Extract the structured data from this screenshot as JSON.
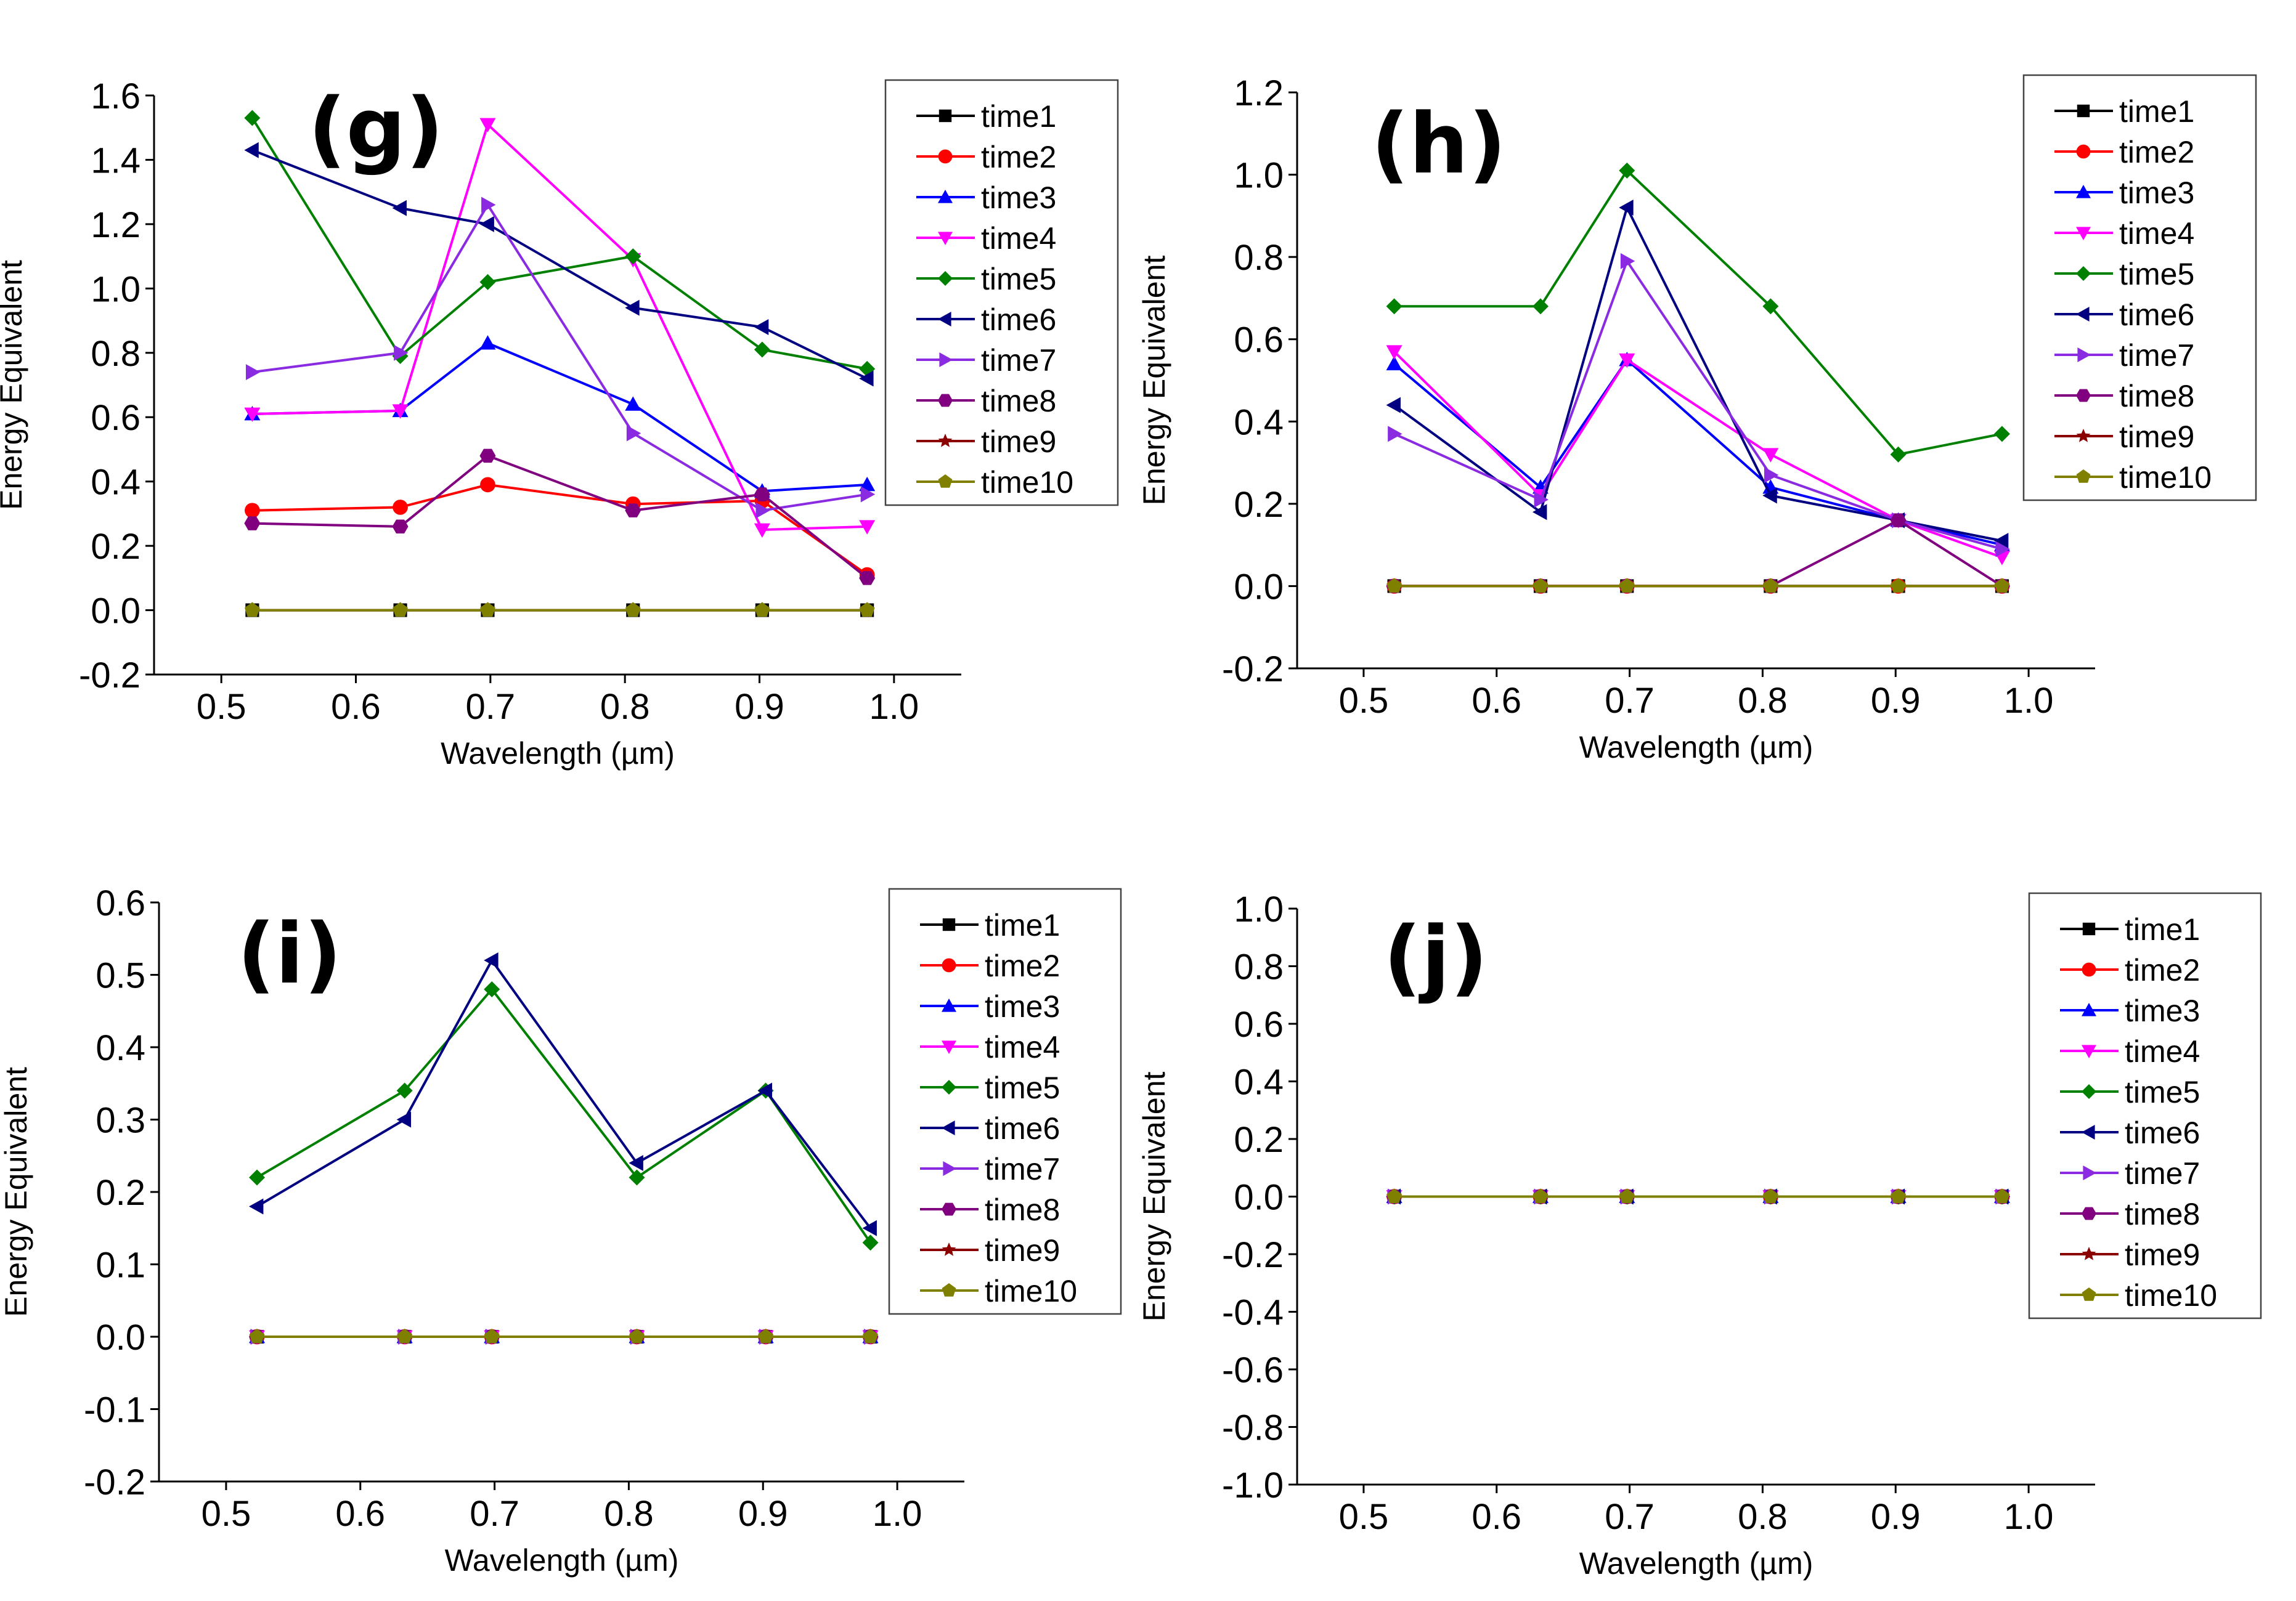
{
  "figure": {
    "series_names": [
      "time1",
      "time2",
      "time3",
      "time4",
      "time5",
      "time6",
      "time7",
      "time8",
      "time9",
      "time10"
    ],
    "series_colors": [
      "#000000",
      "#ff0000",
      "#0000ff",
      "#ff00ff",
      "#008000",
      "#000080",
      "#8a2be2",
      "#800080",
      "#8b0000",
      "#808000"
    ],
    "series_markers": [
      "square",
      "circle",
      "triangle-up",
      "triangle-down",
      "diamond",
      "triangle-left",
      "triangle-right",
      "hexagon",
      "star",
      "pentagon"
    ]
  },
  "chart_data": [
    {
      "type": "line",
      "panel": "(g)",
      "xlabel": "Wavelength (µm)",
      "ylabel": "Energy Equivalent",
      "xlim": [
        0.45,
        1.05
      ],
      "ylim": [
        -0.2,
        1.6
      ],
      "xticks": [
        "0.5",
        "0.6",
        "0.7",
        "0.8",
        "0.9",
        "1.0"
      ],
      "yticks": [
        "-0.2",
        "0.0",
        "0.2",
        "0.4",
        "0.6",
        "0.8",
        "1.0",
        "1.2",
        "1.4",
        "1.6"
      ],
      "x": [
        0.523,
        0.633,
        0.698,
        0.806,
        0.902,
        0.98
      ],
      "legend_position": "top-right",
      "series": [
        {
          "name": "time1",
          "values": [
            0,
            0,
            0,
            0,
            0,
            0
          ]
        },
        {
          "name": "time2",
          "values": [
            0.31,
            0.32,
            0.39,
            0.33,
            0.34,
            0.11
          ]
        },
        {
          "name": "time3",
          "values": [
            0.61,
            0.62,
            0.83,
            0.64,
            0.37,
            0.39
          ]
        },
        {
          "name": "time4",
          "values": [
            0.61,
            0.62,
            1.51,
            1.09,
            0.25,
            0.26
          ]
        },
        {
          "name": "time5",
          "values": [
            1.53,
            0.79,
            1.02,
            1.1,
            0.81,
            0.75
          ]
        },
        {
          "name": "time6",
          "values": [
            1.43,
            1.25,
            1.2,
            0.94,
            0.88,
            0.72
          ]
        },
        {
          "name": "time7",
          "values": [
            0.74,
            0.8,
            1.26,
            0.55,
            0.31,
            0.36
          ]
        },
        {
          "name": "time8",
          "values": [
            0.27,
            0.26,
            0.48,
            0.31,
            0.36,
            0.1
          ]
        },
        {
          "name": "time9",
          "values": [
            0,
            0,
            0,
            0,
            0,
            0
          ]
        },
        {
          "name": "time10",
          "values": [
            0,
            0,
            0,
            0,
            0,
            0
          ]
        }
      ]
    },
    {
      "type": "line",
      "panel": "(h)",
      "xlabel": "Wavelength (µm)",
      "ylabel": "Energy Equivalent",
      "xlim": [
        0.45,
        1.05
      ],
      "ylim": [
        -0.2,
        1.2
      ],
      "xticks": [
        "0.5",
        "0.6",
        "0.7",
        "0.8",
        "0.9",
        "1.0"
      ],
      "yticks": [
        "-0.2",
        "0.0",
        "0.2",
        "0.4",
        "0.6",
        "0.8",
        "1.0",
        "1.2"
      ],
      "x": [
        0.523,
        0.633,
        0.698,
        0.806,
        0.902,
        0.98
      ],
      "legend_position": "top-right",
      "series": [
        {
          "name": "time1",
          "values": [
            0,
            0,
            0,
            0,
            0,
            0
          ]
        },
        {
          "name": "time2",
          "values": [
            0,
            0,
            0,
            0,
            0,
            0
          ]
        },
        {
          "name": "time3",
          "values": [
            0.54,
            0.24,
            0.55,
            0.24,
            0.16,
            0.1
          ]
        },
        {
          "name": "time4",
          "values": [
            0.57,
            0.22,
            0.55,
            0.32,
            0.16,
            0.07
          ]
        },
        {
          "name": "time5",
          "values": [
            0.68,
            0.68,
            1.01,
            0.68,
            0.32,
            0.37
          ]
        },
        {
          "name": "time6",
          "values": [
            0.44,
            0.18,
            0.92,
            0.22,
            0.16,
            0.11
          ]
        },
        {
          "name": "time7",
          "values": [
            0.37,
            0.21,
            0.79,
            0.27,
            0.16,
            0.09
          ]
        },
        {
          "name": "time8",
          "values": [
            0,
            0,
            0,
            0,
            0.16,
            0
          ]
        },
        {
          "name": "time9",
          "values": [
            0,
            0,
            0,
            0,
            0,
            0
          ]
        },
        {
          "name": "time10",
          "values": [
            0,
            0,
            0,
            0,
            0,
            0
          ]
        }
      ]
    },
    {
      "type": "line",
      "panel": "(i)",
      "xlabel": "Wavelength (µm)",
      "ylabel": "Energy Equivalent",
      "xlim": [
        0.45,
        1.05
      ],
      "ylim": [
        -0.2,
        0.6
      ],
      "xticks": [
        "0.5",
        "0.6",
        "0.7",
        "0.8",
        "0.9",
        "1.0"
      ],
      "yticks": [
        "-0.2",
        "-0.1",
        "0.0",
        "0.1",
        "0.2",
        "0.3",
        "0.4",
        "0.5",
        "0.6"
      ],
      "x": [
        0.523,
        0.633,
        0.698,
        0.806,
        0.902,
        0.98
      ],
      "legend_position": "top-right",
      "series": [
        {
          "name": "time1",
          "values": [
            0,
            0,
            0,
            0,
            0,
            0
          ]
        },
        {
          "name": "time2",
          "values": [
            0,
            0,
            0,
            0,
            0,
            0
          ]
        },
        {
          "name": "time3",
          "values": [
            0,
            0,
            0,
            0,
            0,
            0
          ]
        },
        {
          "name": "time4",
          "values": [
            0,
            0,
            0,
            0,
            0,
            0
          ]
        },
        {
          "name": "time5",
          "values": [
            0.22,
            0.34,
            0.48,
            0.22,
            0.34,
            0.13
          ]
        },
        {
          "name": "time6",
          "values": [
            0.18,
            0.3,
            0.52,
            0.24,
            0.34,
            0.15
          ]
        },
        {
          "name": "time7",
          "values": [
            0,
            0,
            0,
            0,
            0,
            0
          ]
        },
        {
          "name": "time8",
          "values": [
            0,
            0,
            0,
            0,
            0,
            0
          ]
        },
        {
          "name": "time9",
          "values": [
            0,
            0,
            0,
            0,
            0,
            0
          ]
        },
        {
          "name": "time10",
          "values": [
            0,
            0,
            0,
            0,
            0,
            0
          ]
        }
      ]
    },
    {
      "type": "line",
      "panel": "(j)",
      "xlabel": "Wavelength (µm)",
      "ylabel": "Energy Equivalent",
      "xlim": [
        0.45,
        1.05
      ],
      "ylim": [
        -1.0,
        1.0
      ],
      "xticks": [
        "0.5",
        "0.6",
        "0.7",
        "0.8",
        "0.9",
        "1.0"
      ],
      "yticks": [
        "-1.0",
        "-0.8",
        "-0.6",
        "-0.4",
        "-0.2",
        "0.0",
        "0.2",
        "0.4",
        "0.6",
        "0.8",
        "1.0"
      ],
      "x": [
        0.523,
        0.633,
        0.698,
        0.806,
        0.902,
        0.98
      ],
      "legend_position": "top-right",
      "series": [
        {
          "name": "time1",
          "values": [
            0,
            0,
            0,
            0,
            0,
            0
          ]
        },
        {
          "name": "time2",
          "values": [
            0,
            0,
            0,
            0,
            0,
            0
          ]
        },
        {
          "name": "time3",
          "values": [
            0,
            0,
            0,
            0,
            0,
            0
          ]
        },
        {
          "name": "time4",
          "values": [
            0,
            0,
            0,
            0,
            0,
            0
          ]
        },
        {
          "name": "time5",
          "values": [
            0,
            0,
            0,
            0,
            0,
            0
          ]
        },
        {
          "name": "time6",
          "values": [
            0,
            0,
            0,
            0,
            0,
            0
          ]
        },
        {
          "name": "time7",
          "values": [
            0,
            0,
            0,
            0,
            0,
            0
          ]
        },
        {
          "name": "time8",
          "values": [
            0,
            0,
            0,
            0,
            0,
            0
          ]
        },
        {
          "name": "time9",
          "values": [
            0,
            0,
            0,
            0,
            0,
            0
          ]
        },
        {
          "name": "time10",
          "values": [
            0,
            0,
            0,
            0,
            0,
            0
          ]
        }
      ]
    }
  ]
}
